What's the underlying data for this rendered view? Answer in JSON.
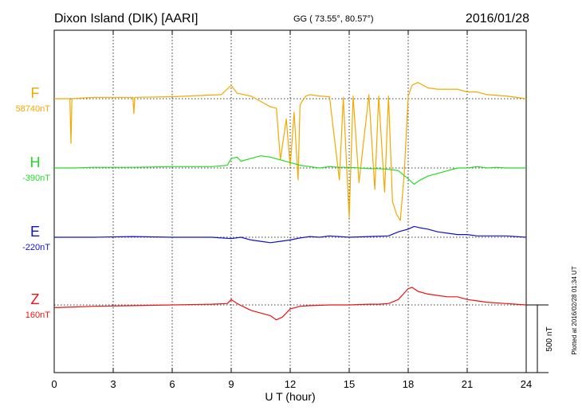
{
  "header": {
    "station": "Dixon Island (DIK)  [AARI]",
    "coords": "GG ( 73.55°,  80.57°)",
    "date": "2016/01/28"
  },
  "footer": {
    "plotted": "Plotted at 2016/02/28 01:34 UT"
  },
  "colors": {
    "F": "#f5a800",
    "H": "#22dd22",
    "E": "#1111cc",
    "Z": "#ee1111"
  },
  "chart_data": {
    "type": "line",
    "xlabel": "U T (hour)",
    "xlim": [
      0,
      24
    ],
    "xticks": [
      "0",
      "3",
      "6",
      "9",
      "12",
      "15",
      "18",
      "21",
      "24"
    ],
    "scale_label": "500 nT",
    "series": [
      {
        "name": "F",
        "baseline_label": "58740nT",
        "baseline": 0,
        "x": [
          0,
          0.8,
          0.85,
          0.9,
          2,
          4,
          4.05,
          4.1,
          6,
          8.5,
          9,
          9.3,
          10,
          10.5,
          11,
          11.3,
          11.5,
          11.8,
          12,
          12.2,
          12.4,
          12.5,
          12.6,
          12.8,
          13,
          13.5,
          14,
          14.5,
          14.7,
          15,
          15.2,
          15.5,
          16,
          16.3,
          16.5,
          16.8,
          17,
          17.2,
          17.4,
          17.6,
          17.8,
          18,
          18.2,
          18.5,
          19,
          19.5,
          20,
          20.5,
          21,
          21.5,
          22,
          23,
          24
        ],
        "values": [
          0,
          0,
          -330,
          0,
          10,
          10,
          -110,
          10,
          15,
          30,
          100,
          40,
          20,
          -20,
          -60,
          -70,
          -450,
          -150,
          -500,
          -100,
          -600,
          -50,
          -20,
          20,
          30,
          20,
          15,
          -600,
          10,
          -880,
          20,
          -620,
          30,
          -670,
          20,
          -690,
          20,
          -760,
          -850,
          -900,
          -550,
          20,
          100,
          120,
          80,
          70,
          70,
          70,
          50,
          50,
          30,
          20,
          0
        ]
      },
      {
        "name": "H",
        "baseline_label": "-390nT",
        "baseline": 0,
        "x": [
          0,
          1,
          2,
          4,
          6,
          8,
          8.8,
          9,
          9.3,
          9.5,
          10,
          10.5,
          11,
          11.5,
          12,
          12.5,
          13,
          13.5,
          14,
          14.5,
          15,
          15.5,
          16,
          16.5,
          17,
          17.5,
          18,
          18.3,
          18.6,
          19,
          19.5,
          20,
          20.5,
          21,
          21.5,
          22,
          22.5,
          23,
          24
        ],
        "values": [
          0,
          0,
          5,
          5,
          10,
          10,
          20,
          70,
          80,
          50,
          70,
          90,
          80,
          60,
          40,
          20,
          10,
          0,
          10,
          5,
          5,
          0,
          -5,
          -5,
          -10,
          -20,
          -80,
          -120,
          -90,
          -60,
          -40,
          -20,
          0,
          0,
          10,
          0,
          5,
          0,
          0
        ]
      },
      {
        "name": "E",
        "baseline_label": "-220nT",
        "baseline": 0,
        "x": [
          0,
          1,
          2,
          4,
          6,
          8,
          9,
          9.5,
          10,
          10.5,
          11,
          11.5,
          12,
          12.5,
          13,
          13.5,
          14,
          15,
          16,
          17,
          17.5,
          18,
          18.3,
          18.6,
          19,
          19.5,
          20,
          20.5,
          21,
          21.5,
          22,
          22.5,
          23,
          24
        ],
        "values": [
          0,
          0,
          0,
          5,
          0,
          0,
          -10,
          0,
          -20,
          -30,
          -40,
          -30,
          -20,
          -5,
          5,
          0,
          10,
          0,
          5,
          10,
          40,
          60,
          80,
          70,
          60,
          40,
          30,
          20,
          20,
          10,
          10,
          10,
          10,
          0
        ]
      },
      {
        "name": "Z",
        "baseline_label": "160nT",
        "baseline": 0,
        "x": [
          0,
          1,
          2,
          4,
          6,
          8,
          8.8,
          9,
          9.3,
          10,
          10.5,
          11,
          11.3,
          11.6,
          12,
          12.5,
          13,
          14,
          15,
          16,
          16.5,
          17,
          17.5,
          18,
          18.2,
          18.5,
          19,
          19.5,
          20,
          20.5,
          21,
          21.5,
          22,
          23,
          24
        ],
        "values": [
          -20,
          -15,
          -10,
          -5,
          0,
          5,
          10,
          40,
          10,
          -40,
          -60,
          -80,
          -110,
          -90,
          -30,
          -10,
          -5,
          0,
          0,
          5,
          5,
          10,
          40,
          120,
          130,
          100,
          80,
          70,
          60,
          60,
          40,
          30,
          20,
          10,
          0
        ]
      }
    ]
  }
}
